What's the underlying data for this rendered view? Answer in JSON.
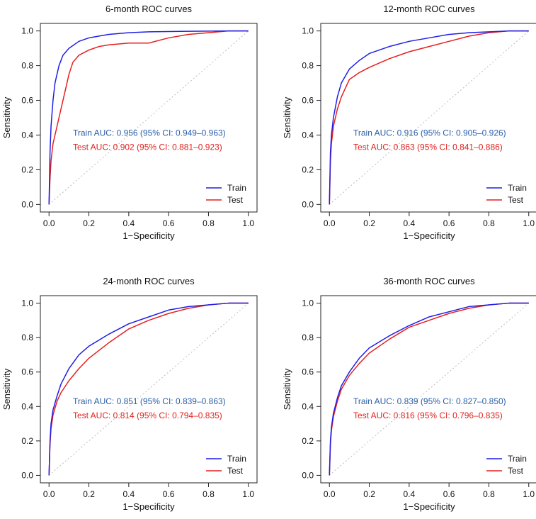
{
  "colors": {
    "train": "#1f1fe6",
    "test": "#e61f1f",
    "train_text": "#2b5fa8",
    "test_text": "#e0231f",
    "diagonal": "#bdbdbd"
  },
  "legend": {
    "train": "Train",
    "test": "Test"
  },
  "chart_data": [
    {
      "type": "line",
      "title": "6-month ROC curves",
      "xlabel": "1−Specificity",
      "ylabel": "Sensitivity",
      "xlim": [
        0,
        1
      ],
      "ylim": [
        0,
        1
      ],
      "ticks": [
        "0.0",
        "0.2",
        "0.4",
        "0.6",
        "0.8",
        "1.0"
      ],
      "annotations": {
        "train": "Train AUC: 0.956 (95% CI: 0.949–0.963)",
        "test": "Test AUC: 0.902 (95% CI: 0.881–0.923)"
      },
      "series": [
        {
          "name": "Train",
          "x": [
            0,
            0.005,
            0.01,
            0.02,
            0.03,
            0.05,
            0.07,
            0.1,
            0.15,
            0.2,
            0.3,
            0.4,
            0.5,
            0.7,
            0.9,
            1.0
          ],
          "y": [
            0,
            0.3,
            0.45,
            0.6,
            0.7,
            0.8,
            0.86,
            0.9,
            0.94,
            0.96,
            0.98,
            0.99,
            0.995,
            0.998,
            1.0,
            1.0
          ]
        },
        {
          "name": "Test",
          "x": [
            0,
            0.005,
            0.01,
            0.02,
            0.04,
            0.06,
            0.08,
            0.1,
            0.12,
            0.15,
            0.2,
            0.25,
            0.3,
            0.4,
            0.5,
            0.6,
            0.7,
            0.8,
            0.9,
            1.0
          ],
          "y": [
            0,
            0.15,
            0.25,
            0.35,
            0.45,
            0.55,
            0.65,
            0.75,
            0.82,
            0.86,
            0.89,
            0.91,
            0.92,
            0.93,
            0.93,
            0.96,
            0.98,
            0.99,
            1.0,
            1.0
          ]
        }
      ]
    },
    {
      "type": "line",
      "title": "12-month ROC curves",
      "xlabel": "1−Specificity",
      "ylabel": "Sensitivity",
      "xlim": [
        0,
        1
      ],
      "ylim": [
        0,
        1
      ],
      "ticks": [
        "0.0",
        "0.2",
        "0.4",
        "0.6",
        "0.8",
        "1.0"
      ],
      "annotations": {
        "train": "Train AUC: 0.916 (95% CI: 0.905–0.926)",
        "test": "Test AUC: 0.863 (95% CI: 0.841–0.886)"
      },
      "series": [
        {
          "name": "Train",
          "x": [
            0,
            0.005,
            0.01,
            0.02,
            0.04,
            0.06,
            0.1,
            0.15,
            0.2,
            0.3,
            0.4,
            0.5,
            0.6,
            0.7,
            0.8,
            0.9,
            1.0
          ],
          "y": [
            0,
            0.3,
            0.4,
            0.5,
            0.62,
            0.7,
            0.78,
            0.83,
            0.87,
            0.91,
            0.94,
            0.96,
            0.98,
            0.99,
            0.995,
            1.0,
            1.0
          ]
        },
        {
          "name": "Test",
          "x": [
            0,
            0.005,
            0.01,
            0.02,
            0.04,
            0.06,
            0.1,
            0.15,
            0.2,
            0.3,
            0.4,
            0.5,
            0.6,
            0.7,
            0.8,
            0.9,
            1.0
          ],
          "y": [
            0,
            0.25,
            0.35,
            0.45,
            0.55,
            0.62,
            0.72,
            0.76,
            0.79,
            0.84,
            0.88,
            0.91,
            0.94,
            0.97,
            0.99,
            1.0,
            1.0
          ]
        }
      ]
    },
    {
      "type": "line",
      "title": "24-month ROC curves",
      "xlabel": "1−Specificity",
      "ylabel": "Sensitivity",
      "xlim": [
        0,
        1
      ],
      "ylim": [
        0,
        1
      ],
      "ticks": [
        "0.0",
        "0.2",
        "0.4",
        "0.6",
        "0.8",
        "1.0"
      ],
      "annotations": {
        "train": "Train AUC: 0.851 (95% CI: 0.839–0.863)",
        "test": "Test AUC: 0.814 (95% CI: 0.794–0.835)"
      },
      "series": [
        {
          "name": "Train",
          "x": [
            0,
            0.005,
            0.01,
            0.02,
            0.04,
            0.06,
            0.1,
            0.15,
            0.2,
            0.3,
            0.4,
            0.5,
            0.6,
            0.7,
            0.8,
            0.9,
            1.0
          ],
          "y": [
            0,
            0.2,
            0.3,
            0.38,
            0.46,
            0.53,
            0.62,
            0.7,
            0.75,
            0.82,
            0.88,
            0.92,
            0.96,
            0.98,
            0.99,
            1.0,
            1.0
          ]
        },
        {
          "name": "Test",
          "x": [
            0,
            0.005,
            0.01,
            0.02,
            0.04,
            0.06,
            0.1,
            0.15,
            0.2,
            0.3,
            0.4,
            0.5,
            0.6,
            0.7,
            0.8,
            0.9,
            1.0
          ],
          "y": [
            0,
            0.18,
            0.27,
            0.35,
            0.43,
            0.48,
            0.55,
            0.62,
            0.68,
            0.77,
            0.85,
            0.9,
            0.94,
            0.97,
            0.99,
            1.0,
            1.0
          ]
        }
      ]
    },
    {
      "type": "line",
      "title": "36-month ROC curves",
      "xlabel": "1−Specificity",
      "ylabel": "Sensitivity",
      "xlim": [
        0,
        1
      ],
      "ylim": [
        0,
        1
      ],
      "ticks": [
        "0.0",
        "0.2",
        "0.4",
        "0.6",
        "0.8",
        "1.0"
      ],
      "annotations": {
        "train": "Train AUC: 0.839 (95% CI: 0.827–0.850)",
        "test": "Test AUC: 0.816 (95% CI: 0.796–0.835)"
      },
      "series": [
        {
          "name": "Train",
          "x": [
            0,
            0.005,
            0.01,
            0.02,
            0.04,
            0.06,
            0.1,
            0.15,
            0.2,
            0.3,
            0.4,
            0.5,
            0.6,
            0.7,
            0.8,
            0.9,
            1.0
          ],
          "y": [
            0,
            0.2,
            0.28,
            0.36,
            0.45,
            0.52,
            0.6,
            0.68,
            0.74,
            0.81,
            0.87,
            0.92,
            0.95,
            0.98,
            0.99,
            1.0,
            1.0
          ]
        },
        {
          "name": "Test",
          "x": [
            0,
            0.005,
            0.01,
            0.02,
            0.04,
            0.06,
            0.1,
            0.15,
            0.2,
            0.3,
            0.4,
            0.5,
            0.6,
            0.7,
            0.8,
            0.9,
            1.0
          ],
          "y": [
            0,
            0.18,
            0.26,
            0.34,
            0.43,
            0.5,
            0.58,
            0.65,
            0.71,
            0.79,
            0.86,
            0.9,
            0.94,
            0.97,
            0.99,
            1.0,
            1.0
          ]
        }
      ]
    }
  ]
}
